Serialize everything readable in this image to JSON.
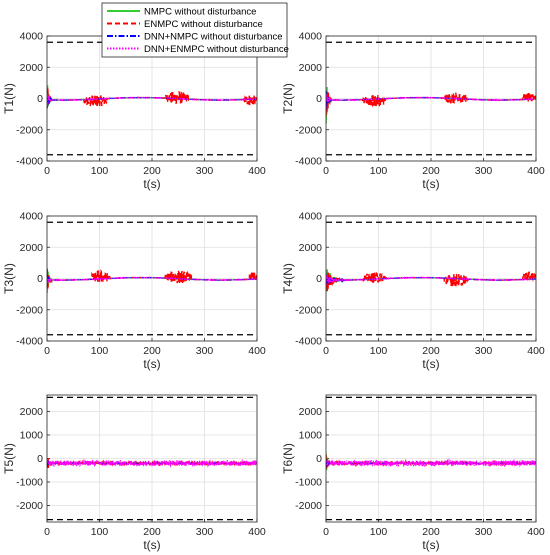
{
  "legend": [
    {
      "name": "NMPC without disturbance",
      "color": "#33cc33",
      "dash": "solid"
    },
    {
      "name": "ENMPC without disturbance",
      "color": "#ff0000",
      "dash": "dashed"
    },
    {
      "name": "DNN+NMPC without disturbance",
      "color": "#0000ff",
      "dash": "dashdot"
    },
    {
      "name": "DNN+ENMPC without disturbance",
      "color": "#ff00ff",
      "dash": "dotted"
    }
  ],
  "chart_data": [
    {
      "id": "T1",
      "type": "line",
      "ylabel": "T1(N)",
      "xlabel": "t(s)",
      "xlim": [
        0,
        400
      ],
      "ylim": [
        -4000,
        4000
      ],
      "xticks": [
        "0",
        "100",
        "200",
        "300",
        "400"
      ],
      "yticks": [
        "-4000",
        "-2000",
        "0",
        "2000",
        "4000"
      ],
      "grid": true,
      "bounds": [
        3600,
        -3600
      ],
      "transient": {
        "end": 10,
        "amplitude": 1400
      },
      "bursts": [
        {
          "start": 70,
          "end": 115,
          "center": -150,
          "amp": 400
        },
        {
          "start": 225,
          "end": 270,
          "center": 50,
          "amp": 420
        },
        {
          "start": 375,
          "end": 400,
          "center": -100,
          "amp": 350
        }
      ]
    },
    {
      "id": "T2",
      "type": "line",
      "ylabel": "T2(N)",
      "xlabel": "t(s)",
      "xlim": [
        0,
        400
      ],
      "ylim": [
        -4000,
        4000
      ],
      "xticks": [
        "0",
        "100",
        "200",
        "300",
        "400"
      ],
      "yticks": [
        "-4000",
        "-2000",
        "0",
        "2000",
        "4000"
      ],
      "grid": true,
      "bounds": [
        3600,
        -3600
      ],
      "transient": {
        "end": 10,
        "amplitude": 1800
      },
      "bursts": [
        {
          "start": 70,
          "end": 115,
          "center": -150,
          "amp": 380
        },
        {
          "start": 225,
          "end": 270,
          "center": 0,
          "amp": 380
        },
        {
          "start": 375,
          "end": 400,
          "center": 100,
          "amp": 300
        }
      ]
    },
    {
      "id": "T3",
      "type": "line",
      "ylabel": "T3(N)",
      "xlabel": "t(s)",
      "xlim": [
        0,
        400
      ],
      "ylim": [
        -4000,
        4000
      ],
      "xticks": [
        "0",
        "100",
        "200",
        "300",
        "400"
      ],
      "yticks": [
        "-4000",
        "-2000",
        "0",
        "2000",
        "4000"
      ],
      "grid": true,
      "bounds": [
        3600,
        -3600
      ],
      "transient": {
        "end": 10,
        "amplitude": 1200
      },
      "bursts": [
        {
          "start": 85,
          "end": 120,
          "center": 100,
          "amp": 400
        },
        {
          "start": 225,
          "end": 275,
          "center": 100,
          "amp": 420
        },
        {
          "start": 385,
          "end": 400,
          "center": 100,
          "amp": 300
        }
      ]
    },
    {
      "id": "T4",
      "type": "line",
      "ylabel": "T4(N)",
      "xlabel": "t(s)",
      "xlim": [
        0,
        400
      ],
      "ylim": [
        -4000,
        4000
      ],
      "xticks": [
        "0",
        "100",
        "200",
        "300",
        "400"
      ],
      "yticks": [
        "-4000",
        "-2000",
        "0",
        "2000",
        "4000"
      ],
      "grid": true,
      "bounds": [
        3600,
        -3600
      ],
      "transient": {
        "end": 35,
        "amplitude": 900
      },
      "bursts": [
        {
          "start": 70,
          "end": 115,
          "center": 50,
          "amp": 350
        },
        {
          "start": 225,
          "end": 270,
          "center": -100,
          "amp": 420
        },
        {
          "start": 375,
          "end": 400,
          "center": 150,
          "amp": 300
        }
      ]
    },
    {
      "id": "T5",
      "type": "line",
      "ylabel": "T5(N)",
      "xlabel": "t(s)",
      "xlim": [
        0,
        400
      ],
      "ylim": [
        -2700,
        2700
      ],
      "xticks": [
        "0",
        "100",
        "200",
        "300",
        "400"
      ],
      "yticks": [
        "-2000",
        "-1000",
        "0",
        "1000",
        "2000"
      ],
      "grid": true,
      "bounds": [
        2600,
        -2600
      ],
      "transient": {
        "end": 8,
        "amplitude": 500
      },
      "bursts": []
    },
    {
      "id": "T6",
      "type": "line",
      "ylabel": "T6(N)",
      "xlabel": "t(s)",
      "xlim": [
        0,
        400
      ],
      "ylim": [
        -2700,
        2700
      ],
      "xticks": [
        "0",
        "100",
        "200",
        "300",
        "400"
      ],
      "yticks": [
        "-2000",
        "-1000",
        "0",
        "1000",
        "2000"
      ],
      "grid": true,
      "bounds": [
        2600,
        -2600
      ],
      "transient": {
        "end": 8,
        "amplitude": 550
      },
      "bursts": []
    }
  ]
}
